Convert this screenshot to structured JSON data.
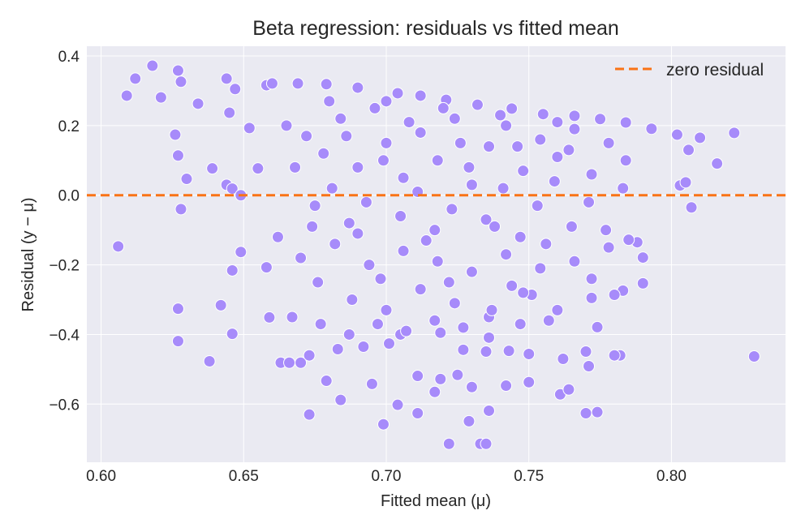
{
  "chart_data": {
    "type": "scatter",
    "title": "Beta regression: residuals vs fitted mean",
    "xlabel": "Fitted mean (μ)",
    "ylabel": "Residual (y − μ)",
    "xlim": [
      0.595,
      0.84
    ],
    "ylim": [
      -0.767,
      0.428
    ],
    "xticks": [
      0.6,
      0.65,
      0.7,
      0.75,
      0.8
    ],
    "xtick_labels": [
      "0.60",
      "0.65",
      "0.70",
      "0.75",
      "0.80"
    ],
    "yticks": [
      0.4,
      0.2,
      0.0,
      -0.2,
      -0.4,
      -0.6
    ],
    "ytick_labels": [
      "0.4",
      "0.2",
      "0.0",
      "−0.2",
      "−0.4",
      "−0.6"
    ],
    "grid": true,
    "legend": {
      "position": "top-right",
      "entries": [
        "zero residual"
      ]
    },
    "colors": {
      "points": "#a78bfa",
      "zero_line": "#f97316",
      "background": "#eaeaf2"
    },
    "reference_line": {
      "name": "zero residual",
      "y": 0.0,
      "style": "dashed"
    },
    "points": [
      [
        0.606,
        -0.147
      ],
      [
        0.609,
        0.286
      ],
      [
        0.612,
        0.335
      ],
      [
        0.618,
        0.372
      ],
      [
        0.621,
        0.281
      ],
      [
        0.627,
        0.358
      ],
      [
        0.628,
        0.326
      ],
      [
        0.626,
        0.174
      ],
      [
        0.627,
        0.114
      ],
      [
        0.63,
        0.047
      ],
      [
        0.628,
        -0.04
      ],
      [
        0.627,
        -0.326
      ],
      [
        0.627,
        -0.419
      ],
      [
        0.634,
        0.263
      ],
      [
        0.638,
        -0.477
      ],
      [
        0.639,
        0.077
      ],
      [
        0.642,
        -0.316
      ],
      [
        0.644,
        0.335
      ],
      [
        0.645,
        0.237
      ],
      [
        0.647,
        0.305
      ],
      [
        0.644,
        0.03
      ],
      [
        0.646,
        0.019
      ],
      [
        0.649,
        0.0
      ],
      [
        0.646,
        -0.216
      ],
      [
        0.649,
        -0.163
      ],
      [
        0.646,
        -0.398
      ],
      [
        0.652,
        0.193
      ],
      [
        0.659,
        -0.351
      ],
      [
        0.658,
        0.316
      ],
      [
        0.655,
        0.077
      ],
      [
        0.658,
        -0.207
      ],
      [
        0.663,
        -0.481
      ],
      [
        0.666,
        -0.481
      ],
      [
        0.67,
        -0.481
      ],
      [
        0.673,
        -0.63
      ],
      [
        0.722,
        -0.714
      ],
      [
        0.733,
        -0.714
      ],
      [
        0.735,
        -0.714
      ],
      [
        0.699,
        -0.658
      ],
      [
        0.711,
        -0.626
      ],
      [
        0.729,
        -0.649
      ],
      [
        0.736,
        -0.619
      ],
      [
        0.77,
        -0.626
      ],
      [
        0.774,
        -0.623
      ],
      [
        0.829,
        -0.463
      ],
      [
        0.807,
        -0.035
      ],
      [
        0.803,
        0.028
      ],
      [
        0.805,
        0.037
      ],
      [
        0.816,
        0.091
      ],
      [
        0.822,
        0.179
      ],
      [
        0.81,
        0.165
      ],
      [
        0.806,
        0.13
      ],
      [
        0.802,
        0.174
      ],
      [
        0.79,
        -0.253
      ],
      [
        0.79,
        -0.179
      ],
      [
        0.788,
        -0.135
      ],
      [
        0.785,
        -0.128
      ],
      [
        0.782,
        -0.46
      ],
      [
        0.78,
        -0.46
      ],
      [
        0.774,
        -0.379
      ],
      [
        0.783,
        -0.274
      ],
      [
        0.78,
        -0.286
      ],
      [
        0.772,
        -0.295
      ],
      [
        0.77,
        -0.449
      ],
      [
        0.771,
        -0.491
      ],
      [
        0.75,
        -0.456
      ],
      [
        0.75,
        -0.537
      ],
      [
        0.762,
        -0.47
      ],
      [
        0.761,
        -0.572
      ],
      [
        0.764,
        -0.558
      ],
      [
        0.751,
        -0.286
      ],
      [
        0.742,
        -0.547
      ],
      [
        0.73,
        -0.551
      ],
      [
        0.725,
        -0.516
      ],
      [
        0.719,
        -0.528
      ],
      [
        0.717,
        -0.565
      ],
      [
        0.711,
        -0.519
      ],
      [
        0.704,
        -0.602
      ],
      [
        0.695,
        -0.542
      ],
      [
        0.684,
        -0.588
      ],
      [
        0.679,
        -0.533
      ],
      [
        0.673,
        -0.46
      ],
      [
        0.683,
        -0.442
      ],
      [
        0.692,
        -0.435
      ],
      [
        0.701,
        -0.426
      ],
      [
        0.705,
        -0.4
      ],
      [
        0.719,
        -0.395
      ],
      [
        0.727,
        -0.444
      ],
      [
        0.735,
        -0.449
      ],
      [
        0.743,
        -0.447
      ],
      [
        0.736,
        -0.409
      ],
      [
        0.66,
        0.321
      ],
      [
        0.669,
        0.321
      ],
      [
        0.679,
        0.319
      ],
      [
        0.69,
        0.309
      ],
      [
        0.704,
        0.293
      ],
      [
        0.712,
        0.286
      ],
      [
        0.721,
        0.274
      ],
      [
        0.732,
        0.26
      ],
      [
        0.744,
        0.249
      ],
      [
        0.755,
        0.233
      ],
      [
        0.766,
        0.228
      ],
      [
        0.775,
        0.219
      ],
      [
        0.784,
        0.209
      ],
      [
        0.793,
        0.191
      ],
      [
        0.665,
        0.2
      ],
      [
        0.672,
        0.17
      ],
      [
        0.678,
        0.12
      ],
      [
        0.684,
        0.22
      ],
      [
        0.69,
        0.08
      ],
      [
        0.696,
        0.25
      ],
      [
        0.7,
        0.15
      ],
      [
        0.706,
        0.05
      ],
      [
        0.712,
        0.18
      ],
      [
        0.718,
        0.1
      ],
      [
        0.724,
        0.22
      ],
      [
        0.73,
        0.03
      ],
      [
        0.736,
        0.14
      ],
      [
        0.742,
        0.2
      ],
      [
        0.748,
        0.07
      ],
      [
        0.754,
        0.16
      ],
      [
        0.76,
        0.11
      ],
      [
        0.766,
        0.19
      ],
      [
        0.772,
        0.06
      ],
      [
        0.778,
        0.15
      ],
      [
        0.784,
        0.1
      ],
      [
        0.668,
        0.08
      ],
      [
        0.675,
        -0.03
      ],
      [
        0.681,
        0.02
      ],
      [
        0.687,
        -0.08
      ],
      [
        0.693,
        -0.02
      ],
      [
        0.699,
        0.1
      ],
      [
        0.705,
        -0.06
      ],
      [
        0.711,
        0.01
      ],
      [
        0.717,
        -0.1
      ],
      [
        0.723,
        -0.04
      ],
      [
        0.729,
        0.08
      ],
      [
        0.735,
        -0.07
      ],
      [
        0.741,
        0.02
      ],
      [
        0.747,
        -0.12
      ],
      [
        0.753,
        -0.03
      ],
      [
        0.759,
        0.04
      ],
      [
        0.765,
        -0.09
      ],
      [
        0.771,
        -0.02
      ],
      [
        0.777,
        -0.1
      ],
      [
        0.783,
        0.02
      ],
      [
        0.662,
        -0.12
      ],
      [
        0.67,
        -0.18
      ],
      [
        0.676,
        -0.25
      ],
      [
        0.682,
        -0.14
      ],
      [
        0.688,
        -0.3
      ],
      [
        0.694,
        -0.2
      ],
      [
        0.7,
        -0.33
      ],
      [
        0.706,
        -0.16
      ],
      [
        0.712,
        -0.27
      ],
      [
        0.718,
        -0.19
      ],
      [
        0.724,
        -0.31
      ],
      [
        0.73,
        -0.22
      ],
      [
        0.736,
        -0.35
      ],
      [
        0.742,
        -0.17
      ],
      [
        0.748,
        -0.28
      ],
      [
        0.754,
        -0.21
      ],
      [
        0.76,
        -0.33
      ],
      [
        0.766,
        -0.19
      ],
      [
        0.772,
        -0.24
      ],
      [
        0.778,
        -0.15
      ],
      [
        0.667,
        -0.35
      ],
      [
        0.677,
        -0.37
      ],
      [
        0.687,
        -0.4
      ],
      [
        0.697,
        -0.37
      ],
      [
        0.707,
        -0.39
      ],
      [
        0.717,
        -0.36
      ],
      [
        0.727,
        -0.38
      ],
      [
        0.737,
        -0.33
      ],
      [
        0.747,
        -0.37
      ],
      [
        0.757,
        -0.36
      ],
      [
        0.68,
        0.27
      ],
      [
        0.7,
        0.27
      ],
      [
        0.72,
        0.25
      ],
      [
        0.74,
        0.23
      ],
      [
        0.76,
        0.21
      ],
      [
        0.686,
        0.17
      ],
      [
        0.708,
        0.21
      ],
      [
        0.726,
        0.15
      ],
      [
        0.746,
        0.14
      ],
      [
        0.764,
        0.13
      ],
      [
        0.69,
        -0.11
      ],
      [
        0.714,
        -0.13
      ],
      [
        0.738,
        -0.09
      ],
      [
        0.756,
        -0.14
      ],
      [
        0.674,
        -0.09
      ],
      [
        0.698,
        -0.24
      ],
      [
        0.722,
        -0.25
      ],
      [
        0.744,
        -0.26
      ]
    ]
  }
}
